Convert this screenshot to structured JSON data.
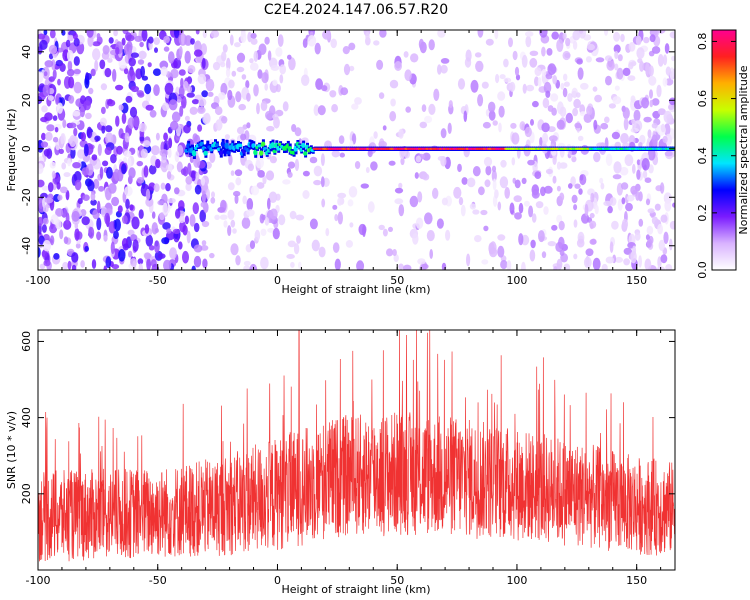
{
  "title": "C2E4.2024.147.06.57.R20",
  "chart_data": [
    {
      "type": "heatmap",
      "name": "spectrogram",
      "xlabel": "Height of straight line (km)",
      "ylabel": "Frequency (Hz)",
      "xlim": [
        -100,
        166
      ],
      "ylim": [
        -50,
        49
      ],
      "x_ticks": [
        -100,
        -50,
        0,
        50,
        100,
        150
      ],
      "y_ticks": [
        -40,
        -20,
        0,
        20,
        40
      ],
      "colorbar": {
        "label": "Normalized spectral amplitude",
        "range": [
          0,
          0.84
        ],
        "ticks": [
          "0.0",
          "0.2",
          "0.4",
          "0.6",
          "0.8"
        ],
        "colors": [
          "#ffffff",
          "#d9b3ff",
          "#7a1bff",
          "#0000ff",
          "#00e5ff",
          "#00ff4c",
          "#c8ff00",
          "#ffb000",
          "#ff2020",
          "#ff0090"
        ]
      },
      "features": {
        "carrier_frequency_hz": 0,
        "carrier_start_km": -38,
        "carrier_peak_km": [
          20,
          80
        ],
        "noise_heavy_region_km": [
          -100,
          -30
        ]
      },
      "grid": false
    },
    {
      "type": "line",
      "name": "snr",
      "xlabel": "Height of straight line (km)",
      "ylabel": "SNR (10 * v/v)",
      "xlim": [
        -100,
        166
      ],
      "ylim": [
        0,
        630
      ],
      "x_ticks": [
        -100,
        -50,
        0,
        50,
        100,
        150
      ],
      "y_ticks": [
        200,
        400,
        600
      ],
      "color": "#f03232",
      "envelope_km": [
        -100,
        -75,
        -50,
        -25,
        0,
        25,
        50,
        75,
        100,
        125,
        150,
        166
      ],
      "envelope_mean": [
        140,
        145,
        150,
        165,
        200,
        245,
        255,
        245,
        225,
        200,
        170,
        160
      ],
      "envelope_spread": [
        120,
        120,
        120,
        130,
        150,
        160,
        165,
        160,
        150,
        140,
        130,
        125
      ],
      "peak_value": 630,
      "peak_km": 9,
      "grid": false
    }
  ]
}
